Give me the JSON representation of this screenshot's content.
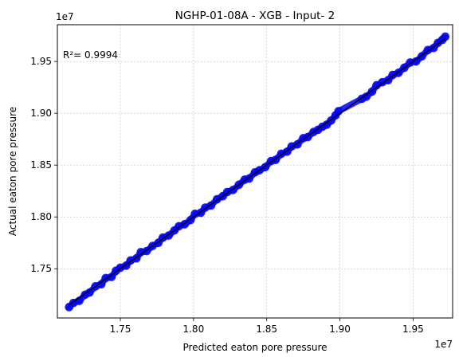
{
  "chart_data": {
    "type": "scatter",
    "title": "NGHP-01-08A - XGB - Input- 2",
    "xlabel": "Predicted eaton pore pressure",
    "ylabel": "Actual eaton pore pressure",
    "x_offset_label": "1e7",
    "y_offset_label": "1e7",
    "annotation": "R²= 0.9994",
    "xlim": [
      1.707,
      1.977
    ],
    "ylim": [
      1.7025,
      1.9855
    ],
    "xticks": [
      1.75,
      1.8,
      1.85,
      1.9,
      1.95
    ],
    "xtick_labels": [
      "1.75",
      "1.80",
      "1.85",
      "1.90",
      "1.95"
    ],
    "yticks": [
      1.75,
      1.8,
      1.85,
      1.9,
      1.95
    ],
    "ytick_labels": [
      "1.75",
      "1.80",
      "1.85",
      "1.90",
      "1.95"
    ],
    "grid": true,
    "point_color": "#0000ff",
    "line_color": "#000000",
    "reference_line": [
      [
        1.715,
        1.715
      ],
      [
        1.972,
        1.972
      ]
    ],
    "series": [
      {
        "points": [
          [
            1.715,
            1.713
          ],
          [
            1.718,
            1.717
          ],
          [
            1.722,
            1.719
          ],
          [
            1.726,
            1.725
          ],
          [
            1.729,
            1.727
          ],
          [
            1.733,
            1.733
          ],
          [
            1.737,
            1.735
          ],
          [
            1.74,
            1.741
          ],
          [
            1.744,
            1.742
          ],
          [
            1.747,
            1.748
          ],
          [
            1.75,
            1.751
          ],
          [
            1.754,
            1.753
          ],
          [
            1.757,
            1.758
          ],
          [
            1.761,
            1.76
          ],
          [
            1.764,
            1.766
          ],
          [
            1.768,
            1.767
          ],
          [
            1.772,
            1.772
          ],
          [
            1.776,
            1.775
          ],
          [
            1.779,
            1.78
          ],
          [
            1.783,
            1.782
          ],
          [
            1.787,
            1.787
          ],
          [
            1.79,
            1.791
          ],
          [
            1.794,
            1.793
          ],
          [
            1.798,
            1.797
          ],
          [
            1.801,
            1.803
          ],
          [
            1.805,
            1.804
          ],
          [
            1.808,
            1.809
          ],
          [
            1.812,
            1.811
          ],
          [
            1.816,
            1.817
          ],
          [
            1.82,
            1.82
          ],
          [
            1.823,
            1.824
          ],
          [
            1.827,
            1.826
          ],
          [
            1.831,
            1.831
          ],
          [
            1.835,
            1.836
          ],
          [
            1.838,
            1.837
          ],
          [
            1.842,
            1.843
          ],
          [
            1.845,
            1.845
          ],
          [
            1.849,
            1.848
          ],
          [
            1.853,
            1.854
          ],
          [
            1.856,
            1.855
          ],
          [
            1.86,
            1.861
          ],
          [
            1.864,
            1.863
          ],
          [
            1.867,
            1.868
          ],
          [
            1.871,
            1.87
          ],
          [
            1.875,
            1.876
          ],
          [
            1.878,
            1.877
          ],
          [
            1.882,
            1.882
          ],
          [
            1.885,
            1.884
          ],
          [
            1.888,
            1.887
          ],
          [
            1.891,
            1.889
          ],
          [
            1.894,
            1.893
          ],
          [
            1.897,
            1.898
          ],
          [
            1.899,
            1.902
          ],
          [
            1.915,
            1.914
          ],
          [
            1.918,
            1.916
          ],
          [
            1.922,
            1.921
          ],
          [
            1.925,
            1.927
          ],
          [
            1.929,
            1.93
          ],
          [
            1.933,
            1.932
          ],
          [
            1.936,
            1.937
          ],
          [
            1.94,
            1.939
          ],
          [
            1.944,
            1.944
          ],
          [
            1.948,
            1.949
          ],
          [
            1.952,
            1.95
          ],
          [
            1.956,
            1.955
          ],
          [
            1.96,
            1.961
          ],
          [
            1.964,
            1.963
          ],
          [
            1.967,
            1.968
          ],
          [
            1.97,
            1.971
          ],
          [
            1.972,
            1.974
          ]
        ]
      }
    ]
  }
}
